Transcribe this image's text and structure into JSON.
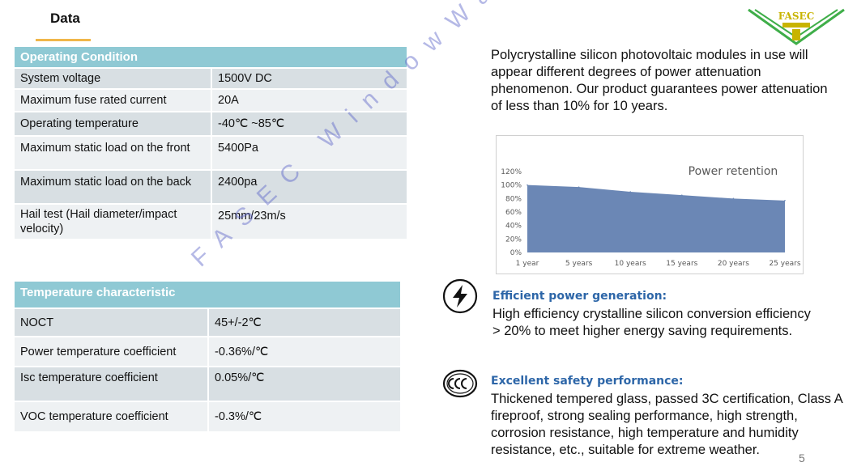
{
  "header": {
    "title": "Data"
  },
  "logo": {
    "text": "FASEC"
  },
  "operating": {
    "heading": "Operating Condition",
    "rows": [
      {
        "label": "System voltage",
        "value": "1500V DC"
      },
      {
        "label": "Maximum fuse rated current",
        "value": "20A"
      },
      {
        "label": "Operating temperature",
        "value": "-40℃ ~85℃"
      },
      {
        "label": "Maximum static load on the front",
        "value": "5400Pa"
      },
      {
        "label": "Maximum static load on the back",
        "value": "2400pa"
      },
      {
        "label": "Hail test (Hail diameter/impact velocity)",
        "value": "25mm/23m/s"
      }
    ]
  },
  "temperature": {
    "heading": "Temperature characteristic",
    "rows": [
      {
        "label": "NOCT",
        "value": "45+/-2℃"
      },
      {
        "label": "Power temperature coefficient",
        "value": "-0.36%/℃"
      },
      {
        "label": "Isc temperature coefficient",
        "value": "0.05%/℃"
      },
      {
        "label": "VOC  temperature coefficient",
        "value": "-0.3%/℃"
      }
    ]
  },
  "intro": "Polycrystalline silicon photovoltaic modules in use will appear different degrees of power attenuation phenomenon. Our product guarantees power attenuation of less than 10% for 10 years.",
  "chart_data": {
    "type": "area",
    "title": "Power retention",
    "categories": [
      "1 year",
      "5 years",
      "10 years",
      "15 years",
      "20 years",
      "25 years"
    ],
    "values": [
      100,
      97,
      90,
      85,
      80,
      77
    ],
    "yticks": [
      "0%",
      "20%",
      "40%",
      "60%",
      "80%",
      "100%",
      "120%"
    ],
    "ylim": [
      0,
      120
    ],
    "color": "#6b87b5",
    "grid": false
  },
  "features": [
    {
      "icon": "lightning-icon",
      "title": "Efficient power generation:",
      "text": "High efficiency crystalline silicon conversion efficiency > 20% to meet higher energy saving requirements."
    },
    {
      "icon": "ccc-certification-icon",
      "title": "Excellent safety performance:",
      "text": "Thickened tempered glass, passed 3C certification, Class A fireproof, strong sealing performance, high strength, corrosion resistance, high temperature and humidity resistance, etc., suitable for extreme weather."
    }
  ],
  "watermark": "FASEC WindowWall Co., Ltd",
  "page_number": "5"
}
